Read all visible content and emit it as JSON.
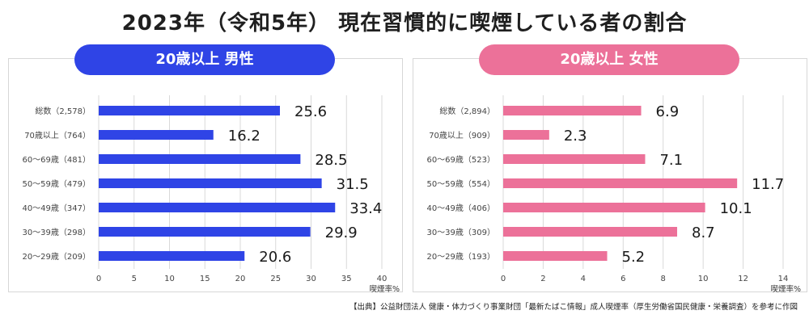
{
  "title": "2023年（令和5年） 現在習慣的に喫煙している者の割合",
  "source": "【出典】公益財団法人 健康・体力づくり事業財団「最新たばこ情報」成人喫煙率（厚生労働省国民健康・栄養調査）を参考に作図",
  "colors": {
    "male": "#2f44e6",
    "female": "#ec7199"
  },
  "chart_data": [
    {
      "type": "bar",
      "orientation": "horizontal",
      "title": "20歳以上 男性",
      "categories": [
        "総数（2,578）",
        "70歳以上（764）",
        "60～69歳（481）",
        "50～59歳（479）",
        "40～49歳（347）",
        "30～39歳（298）",
        "20～29歳（209）"
      ],
      "values": [
        25.6,
        16.2,
        28.5,
        31.5,
        33.4,
        29.9,
        20.6
      ],
      "xlim": [
        0,
        40
      ],
      "xticks": [
        0,
        5,
        10,
        15,
        20,
        25,
        30,
        35,
        40
      ],
      "xlabel": "喫煙率%",
      "grid": true
    },
    {
      "type": "bar",
      "orientation": "horizontal",
      "title": "20歳以上 女性",
      "categories": [
        "総数（2,894）",
        "70歳以上（909）",
        "60～69歳（523）",
        "50～59歳（554）",
        "40～49歳（406）",
        "30～39歳（309）",
        "20～29歳（193）"
      ],
      "values": [
        6.9,
        2.3,
        7.1,
        11.7,
        10.1,
        8.7,
        5.2
      ],
      "xlim": [
        0,
        14
      ],
      "xticks": [
        0,
        2,
        4,
        6,
        8,
        10,
        12,
        14
      ],
      "xlabel": "喫煙率%",
      "grid": true
    }
  ]
}
